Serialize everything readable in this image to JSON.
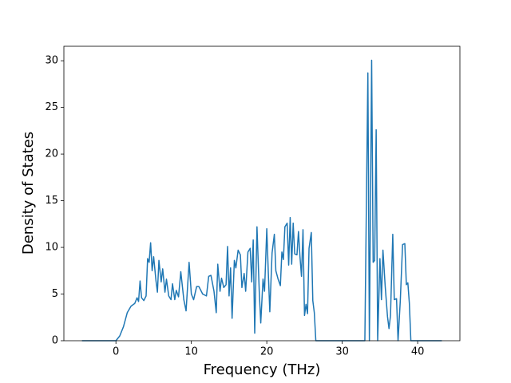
{
  "chart_data": {
    "type": "line",
    "xlabel": "Frequency (THz)",
    "ylabel": "Density of States",
    "color": "#1f77b4",
    "xlim": [
      -6.9,
      45.6
    ],
    "ylim": [
      0,
      31.55
    ],
    "xticks": [
      0,
      10,
      20,
      30,
      40
    ],
    "yticks": [
      0,
      5,
      10,
      15,
      20,
      25,
      30
    ],
    "x": [
      -4.5,
      0,
      0.5,
      1,
      1.5,
      2,
      2.5,
      2.8,
      3,
      3.2,
      3.4,
      3.7,
      4,
      4.2,
      4.4,
      4.6,
      4.8,
      5,
      5.3,
      5.5,
      5.7,
      6,
      6.2,
      6.5,
      6.7,
      7,
      7.3,
      7.5,
      7.8,
      8,
      8.3,
      8.6,
      9,
      9.3,
      9.7,
      10,
      10.3,
      10.7,
      11,
      11.5,
      12,
      12.3,
      12.6,
      13,
      13.3,
      13.5,
      13.8,
      14,
      14.3,
      14.6,
      14.8,
      15,
      15.2,
      15.4,
      15.7,
      15.9,
      16.2,
      16.5,
      16.7,
      17,
      17.2,
      17.5,
      17.8,
      18,
      18.2,
      18.4,
      18.7,
      19,
      19.2,
      19.5,
      19.7,
      20,
      20.2,
      20.4,
      20.7,
      21,
      21.2,
      21.5,
      21.8,
      22,
      22.2,
      22.4,
      22.7,
      22.9,
      23.1,
      23.3,
      23.5,
      23.7,
      24,
      24.2,
      24.4,
      24.6,
      24.8,
      25,
      25.2,
      25.4,
      25.6,
      25.9,
      26.1,
      26.3,
      26.5,
      33,
      33.4,
      33.6,
      33.9,
      34.1,
      34.3,
      34.5,
      34.7,
      35,
      35.2,
      35.4,
      35.7,
      36,
      36.2,
      36.4,
      36.7,
      36.9,
      37.2,
      37.4,
      37.7,
      38,
      38.3,
      38.5,
      38.7,
      38.9,
      39.1,
      43.2
    ],
    "values": [
      0,
      0,
      0.5,
      1.5,
      3,
      3.7,
      4,
      4.6,
      4.2,
      6.4,
      4.6,
      4.3,
      4.8,
      8.8,
      8.4,
      10.5,
      7.5,
      9,
      6.5,
      5.2,
      8.6,
      6.3,
      7.7,
      5.2,
      6.6,
      4.8,
      4.4,
      6.1,
      4.4,
      5.4,
      4.7,
      7.4,
      4.4,
      3.2,
      8.4,
      5,
      4.4,
      5.8,
      5.8,
      5,
      4.8,
      6.9,
      7,
      5.3,
      3,
      8.2,
      5.3,
      6.7,
      5.7,
      6,
      10.1,
      4.8,
      7.8,
      2.4,
      8.6,
      7.8,
      9.7,
      9.2,
      5.7,
      7.2,
      5.3,
      9.5,
      9.9,
      6.3,
      10.8,
      0.8,
      12.2,
      5.3,
      1.9,
      6.6,
      5.3,
      12,
      7.3,
      3.1,
      9.4,
      11.4,
      7.5,
      6.6,
      5.9,
      9.5,
      8.7,
      12.2,
      12.6,
      8.1,
      13.2,
      8.2,
      12.6,
      9.3,
      9.2,
      11.7,
      9,
      6.9,
      11.9,
      2.7,
      3.9,
      2.9,
      9.9,
      11.6,
      4.3,
      3,
      0,
      0,
      28.7,
      0,
      30.05,
      8.4,
      8.6,
      22.6,
      0,
      8.8,
      4.4,
      9.7,
      5.8,
      2.6,
      1.3,
      2.7,
      11.4,
      4.4,
      4.5,
      0,
      4.3,
      10.3,
      10.4,
      6,
      6.2,
      4,
      0,
      0
    ]
  }
}
